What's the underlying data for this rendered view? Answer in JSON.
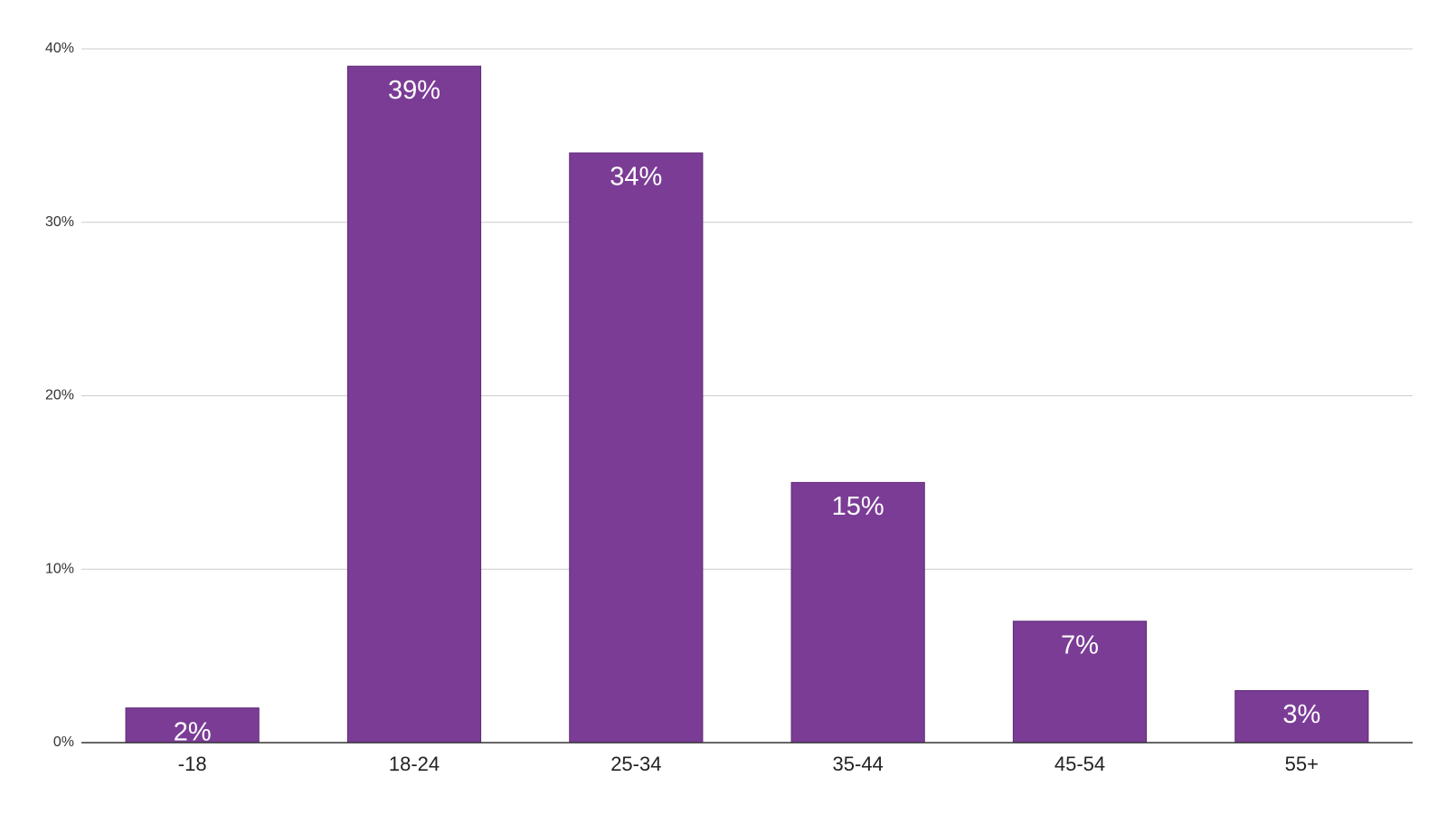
{
  "chart_data": {
    "type": "bar",
    "categories": [
      "-18",
      "18-24",
      "25-34",
      "35-44",
      "45-54",
      "55+"
    ],
    "values": [
      2,
      39,
      34,
      15,
      7,
      3
    ],
    "value_labels": [
      "2%",
      "39%",
      "34%",
      "15%",
      "7%",
      "3%"
    ],
    "color": "#7b3c96",
    "ylim": [
      0,
      40
    ],
    "yticks": [
      {
        "value": 0,
        "label": "0%"
      },
      {
        "value": 10,
        "label": "10%"
      },
      {
        "value": 20,
        "label": "20%"
      },
      {
        "value": 30,
        "label": "30%"
      },
      {
        "value": 40,
        "label": "40%"
      }
    ],
    "grid": true
  }
}
